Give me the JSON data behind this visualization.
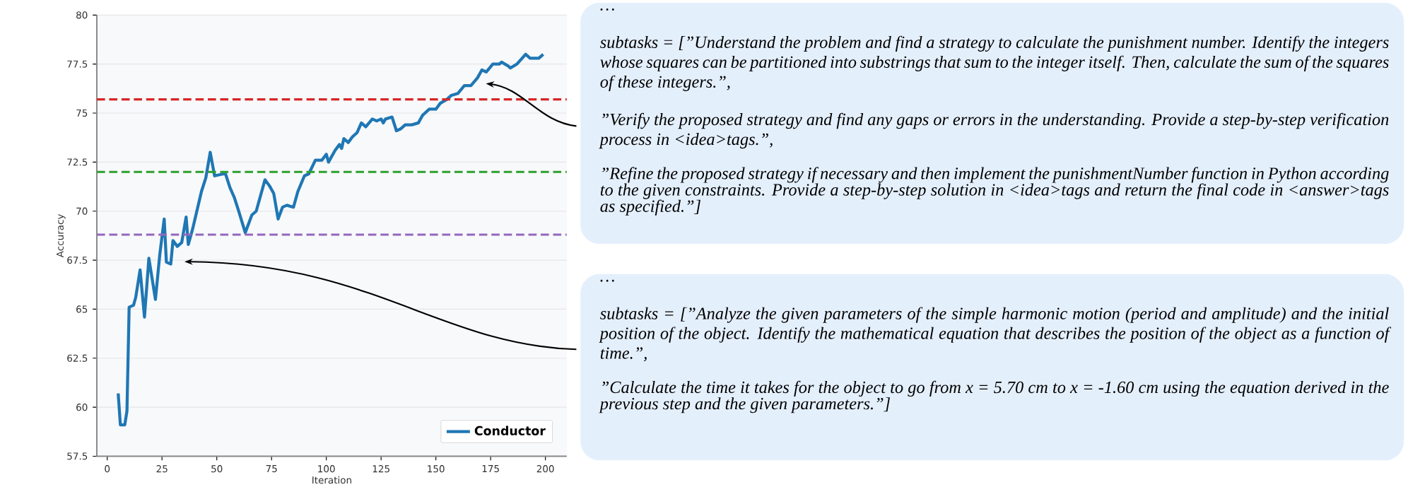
{
  "chart_data": [
    {
      "type": "line",
      "xlabel": "Iteration",
      "ylabel": "Accuracy",
      "xlim": [
        -4.75,
        209.75
      ],
      "ylim": [
        57.5,
        80
      ],
      "xticks": [
        0,
        25,
        50,
        75,
        100,
        125,
        150,
        175,
        200
      ],
      "yticks": [
        57.5,
        60,
        62.5,
        65,
        67.5,
        70,
        72.5,
        75,
        77.5,
        80
      ],
      "grid": "y",
      "legend": "bottom right",
      "marker": "none",
      "line_style": "solid",
      "series": [
        {
          "name": "Conductor",
          "color": "#1f77b4",
          "x": [
            5,
            6,
            8,
            9,
            10,
            12,
            13,
            15,
            17,
            19,
            22,
            24,
            26,
            27,
            29,
            30,
            32,
            34,
            36,
            37,
            39,
            43,
            45,
            47,
            49,
            53,
            54,
            56,
            58,
            60,
            63,
            66,
            68,
            72,
            74,
            76,
            78,
            80,
            82,
            85,
            87,
            90,
            92,
            95,
            98,
            100,
            101,
            104,
            106,
            107,
            108,
            110,
            112,
            114,
            116,
            118,
            121,
            123,
            125,
            126,
            127,
            130,
            132,
            134,
            136,
            139,
            142,
            144,
            147,
            150,
            152,
            155,
            157,
            160,
            163,
            166,
            169,
            171,
            173,
            176,
            179,
            180,
            183,
            184,
            187,
            191,
            193,
            196,
            197,
            199
          ],
          "values": [
            60.7,
            59.1,
            59.1,
            59.8,
            65.1,
            65.2,
            65.6,
            67.0,
            64.6,
            67.6,
            65.5,
            67.8,
            69.6,
            67.4,
            67.3,
            68.5,
            68.2,
            68.4,
            69.7,
            68.3,
            69.1,
            71.0,
            71.7,
            73.0,
            71.8,
            71.9,
            71.9,
            71.2,
            70.7,
            70.0,
            68.9,
            69.8,
            70.0,
            71.6,
            71.3,
            70.9,
            69.6,
            70.2,
            70.3,
            70.2,
            71.0,
            71.8,
            71.9,
            72.6,
            72.6,
            72.9,
            72.5,
            73.1,
            73.4,
            73.2,
            73.7,
            73.5,
            73.8,
            74.0,
            74.5,
            74.3,
            74.7,
            74.6,
            74.7,
            74.5,
            74.7,
            74.8,
            74.1,
            74.2,
            74.4,
            74.4,
            74.5,
            74.9,
            75.2,
            75.2,
            75.5,
            75.7,
            75.9,
            76.0,
            76.4,
            76.4,
            76.8,
            77.2,
            77.1,
            77.5,
            77.5,
            77.6,
            77.4,
            77.3,
            77.5,
            78.0,
            77.8,
            77.8,
            77.8,
            78.0
          ]
        }
      ],
      "ref_lines": [
        {
          "axis": "y",
          "value": 75.7,
          "color": "#d62728",
          "line_style": "dashed"
        },
        {
          "axis": "y",
          "value": 72.0,
          "color": "#2ca02c",
          "line_style": "dashed"
        },
        {
          "axis": "y",
          "value": 68.8,
          "color": "#9467bd",
          "line_style": "dashed"
        }
      ]
    },
    {
      "type": "other",
      "annotations": [
        "…",
        "subtasks = [”Understand the problem and find a strategy to calculate the punishment number. Identify the integers whose squares can be partitioned into substrings that sum to the integer itself. Then, calculate the sum of the squares of these integers.”,",
        "”Verify the proposed strategy and find any gaps or errors in the understanding. Provide a step-by-step verification process in <idea>tags.”,",
        "”Refine the proposed strategy if necessary and then implement the punishmentNumber function in Python according to the given constraints. Provide a step-by-step solution in <idea>tags and return the final code in <answer>tags as specified.”]"
      ]
    },
    {
      "type": "other",
      "annotations": [
        "…",
        "subtasks = [”Analyze the given parameters of the simple harmonic motion (period and amplitude) and the initial position of the object. Identify the mathematical equation that describes the position of the object as a function of time.”,",
        "”Calculate the time it takes for the object to go from x = 5.70 cm to x = -1.60 cm using the equation derived in the previous step and the given parameters.”]"
      ]
    }
  ]
}
